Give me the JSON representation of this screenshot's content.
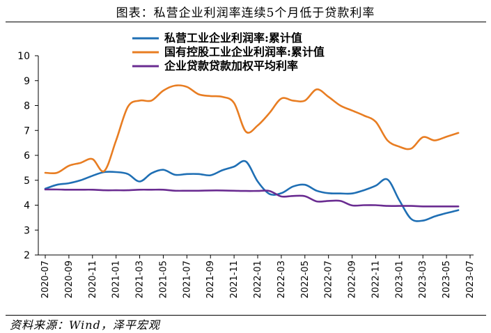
{
  "header": {
    "title": "图表：私营企业利润率连续5个月低于贷款利率"
  },
  "footer": {
    "source": "资料来源：Wind，泽平宏观"
  },
  "chart_data": {
    "type": "line",
    "title": "图表：私营企业利润率连续5个月低于贷款利率",
    "xlabel": "",
    "ylabel": "",
    "ylim": [
      2,
      10
    ],
    "yticks": [
      2,
      3,
      4,
      5,
      6,
      7,
      8,
      9,
      10
    ],
    "grid": false,
    "legend_position": "top-center",
    "x": [
      "2020-07",
      "2020-08",
      "2020-09",
      "2020-10",
      "2020-11",
      "2020-12",
      "2021-01",
      "2021-02",
      "2021-03",
      "2021-04",
      "2021-05",
      "2021-06",
      "2021-07",
      "2021-08",
      "2021-09",
      "2021-10",
      "2021-11",
      "2021-12",
      "2022-01",
      "2022-02",
      "2022-03",
      "2022-04",
      "2022-05",
      "2022-06",
      "2022-07",
      "2022-08",
      "2022-09",
      "2022-10",
      "2022-11",
      "2022-12",
      "2023-01",
      "2023-02",
      "2023-03",
      "2023-04",
      "2023-05",
      "2023-06"
    ],
    "xtick_labels": [
      "2020-07",
      "2020-09",
      "2020-11",
      "2021-01",
      "2021-03",
      "2021-05",
      "2021-07",
      "2021-09",
      "2021-11",
      "2022-01",
      "2022-03",
      "2022-05",
      "2022-07",
      "2022-09",
      "2022-11",
      "2023-01",
      "2023-03",
      "2023-05",
      "2023-07"
    ],
    "series": [
      {
        "name": "私营工业企业利润率:累计值",
        "color": "#1f6fb4",
        "values": [
          4.66,
          4.82,
          4.88,
          5.0,
          5.18,
          5.33,
          5.33,
          5.25,
          4.95,
          5.28,
          5.42,
          5.22,
          5.25,
          5.25,
          5.2,
          5.4,
          5.55,
          5.75,
          4.95,
          4.45,
          4.48,
          4.75,
          4.82,
          4.58,
          4.48,
          4.47,
          4.47,
          4.6,
          4.78,
          5.03,
          4.2,
          3.45,
          3.38,
          3.55,
          3.68,
          3.8
        ]
      },
      {
        "name": "国有控股工业企业利润率:累计值",
        "color": "#e87d22",
        "values": [
          5.3,
          5.3,
          5.58,
          5.7,
          5.85,
          5.37,
          6.6,
          7.95,
          8.2,
          8.2,
          8.6,
          8.8,
          8.75,
          8.45,
          8.38,
          8.35,
          8.1,
          6.95,
          7.2,
          7.7,
          8.28,
          8.2,
          8.2,
          8.65,
          8.35,
          8.0,
          7.8,
          7.6,
          7.35,
          6.6,
          6.35,
          6.27,
          6.73,
          6.6,
          6.75,
          6.9
        ]
      },
      {
        "name": "企业贷款贷款加权平均利率",
        "color": "#6a2c91",
        "values": [
          4.63,
          4.63,
          4.62,
          4.62,
          4.62,
          4.6,
          4.6,
          4.6,
          4.62,
          4.62,
          4.62,
          4.58,
          4.58,
          4.58,
          4.59,
          4.59,
          4.58,
          4.57,
          4.57,
          4.57,
          4.35,
          4.37,
          4.36,
          4.15,
          4.17,
          4.17,
          3.99,
          4.0,
          4.0,
          3.97,
          3.97,
          3.97,
          3.95,
          3.95,
          3.95,
          3.95
        ]
      }
    ]
  }
}
